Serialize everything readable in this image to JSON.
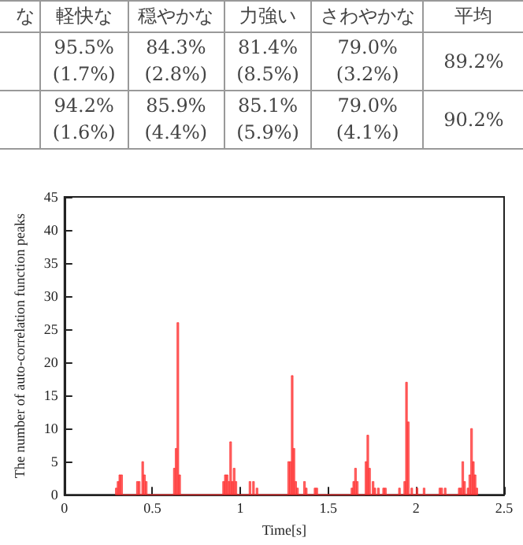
{
  "chart_data": [
    {
      "type": "other",
      "annotations": [
        "な",
        "軽快な",
        "穏やかな",
        "力強い",
        "さわやかな",
        "平均",
        "95.5%\n(1.7%)",
        "84.3%\n(2.8%)",
        "81.4%\n(8.5%)",
        "79.0%\n(3.2%)",
        "89.2%",
        "94.2%\n(1.6%)",
        "85.9%\n(4.4%)",
        "85.1%\n(5.9%)",
        "79.0%\n(4.1%)",
        "90.2%"
      ]
    },
    {
      "type": "histogram",
      "xlabel": "Time[s]",
      "ylabel": "The number of auto-correlation function peaks",
      "color": "#ff3030",
      "bins": [
        0.29,
        0.3,
        0.31,
        0.32,
        0.33,
        0.41,
        0.42,
        0.43,
        0.44,
        0.45,
        0.46,
        0.47,
        0.62,
        0.63,
        0.64,
        0.65,
        0.66,
        0.9,
        0.91,
        0.92,
        0.93,
        0.94,
        0.95,
        0.96,
        0.97,
        0.98,
        1.05,
        1.06,
        1.07,
        1.08,
        1.09,
        1.1,
        1.27,
        1.28,
        1.29,
        1.3,
        1.31,
        1.32,
        1.33,
        1.36,
        1.37,
        1.38,
        1.42,
        1.43,
        1.44,
        1.63,
        1.64,
        1.65,
        1.66,
        1.67,
        1.71,
        1.72,
        1.73,
        1.74,
        1.75,
        1.76,
        1.77,
        1.78,
        1.79,
        1.81,
        1.82,
        1.83,
        1.9,
        1.91,
        1.92,
        1.93,
        1.94,
        1.95,
        1.96,
        1.97,
        1.98,
        2.0,
        2.01,
        2.04,
        2.05,
        2.13,
        2.14,
        2.15,
        2.16,
        2.17,
        2.24,
        2.25,
        2.26,
        2.27,
        2.28,
        2.29,
        2.3,
        2.31,
        2.32,
        2.33,
        2.34,
        2.35
      ],
      "values": [
        1,
        2,
        3,
        3,
        0,
        2,
        2,
        0,
        5,
        3,
        2,
        0,
        4,
        7,
        26,
        3,
        0,
        2,
        3,
        3,
        2,
        8,
        2,
        4,
        2,
        0,
        2,
        0,
        2,
        0,
        1,
        0,
        5,
        5,
        18,
        7,
        2,
        1,
        0,
        2,
        1,
        0,
        1,
        1,
        0,
        1,
        2,
        4,
        2,
        0,
        5,
        9,
        4,
        0,
        2,
        1,
        0,
        1,
        0,
        1,
        1,
        0,
        1,
        0,
        0,
        2,
        17,
        11,
        0,
        1,
        0,
        1,
        0,
        1,
        0,
        1,
        1,
        0,
        1,
        0,
        1,
        1,
        5,
        2,
        0,
        1,
        3,
        10,
        5,
        3,
        1
      ],
      "xlim": [
        0,
        2.5
      ],
      "xticks": [
        0,
        0.5,
        1,
        1.5,
        2,
        2.5
      ],
      "ylim": [
        0,
        45
      ],
      "yticks": [
        0,
        5,
        10,
        15,
        20,
        25,
        30,
        35,
        40,
        45
      ],
      "grid": false
    }
  ]
}
